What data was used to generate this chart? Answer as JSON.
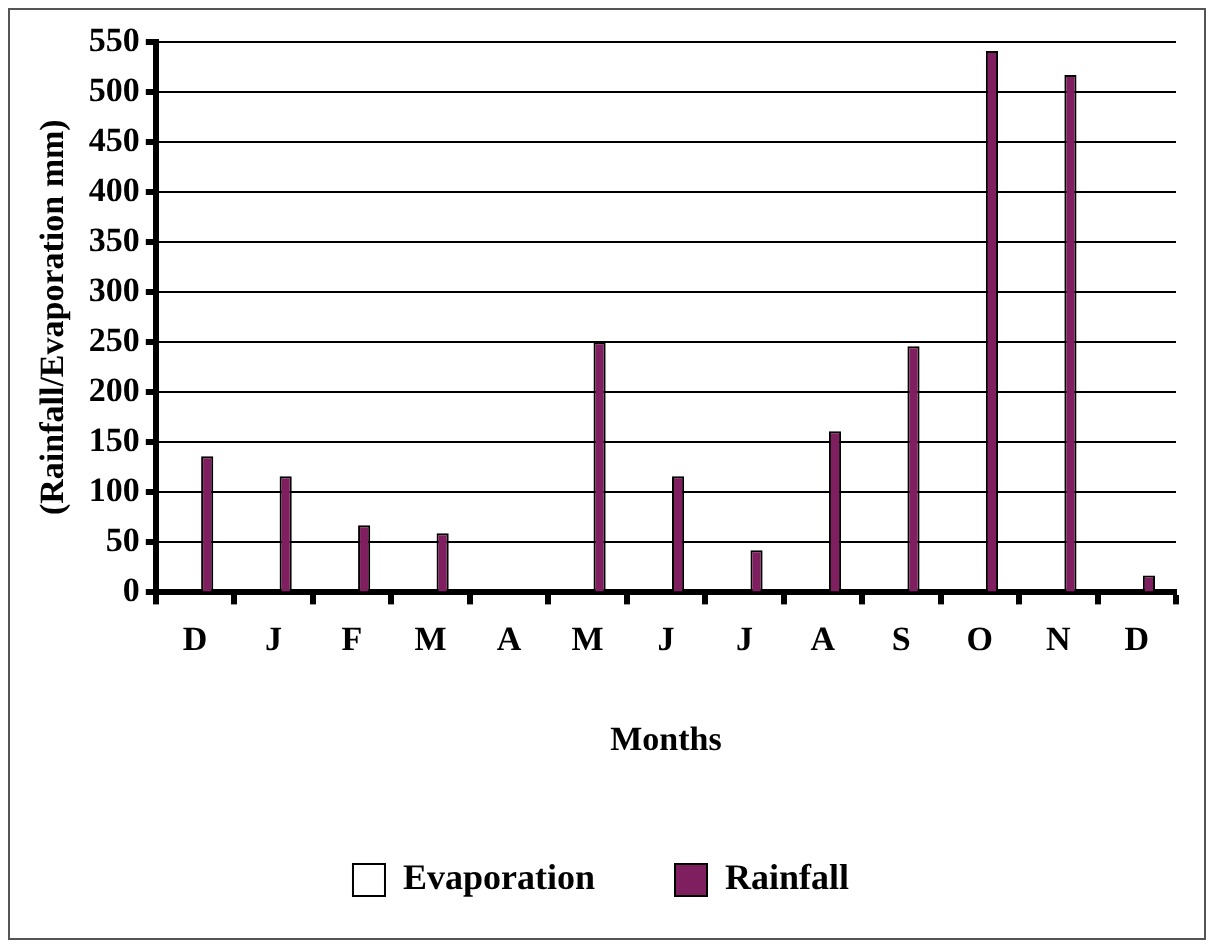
{
  "chart_data": {
    "type": "bar",
    "xlabel": "Months",
    "ylabel": "(Rainfall/Evaporation mm)",
    "categories": [
      "D",
      "J",
      "F",
      "M",
      "A",
      "M",
      "J",
      "J",
      "A",
      "S",
      "O",
      "N",
      "D"
    ],
    "series": [
      {
        "name": "Evaporation",
        "color": "#ffffff",
        "values": [
          null,
          null,
          null,
          null,
          null,
          null,
          null,
          null,
          null,
          null,
          null,
          null,
          null
        ]
      },
      {
        "name": "Rainfall",
        "color": "#7f1f5f",
        "values": [
          136,
          116,
          67,
          59,
          0,
          250,
          116,
          42,
          161,
          246,
          541,
          517,
          17
        ]
      }
    ],
    "ylim": [
      0,
      550
    ],
    "yticks": [
      0,
      50,
      100,
      150,
      200,
      250,
      300,
      350,
      400,
      450,
      500,
      550
    ],
    "grid": "y",
    "legend": "bottom"
  }
}
